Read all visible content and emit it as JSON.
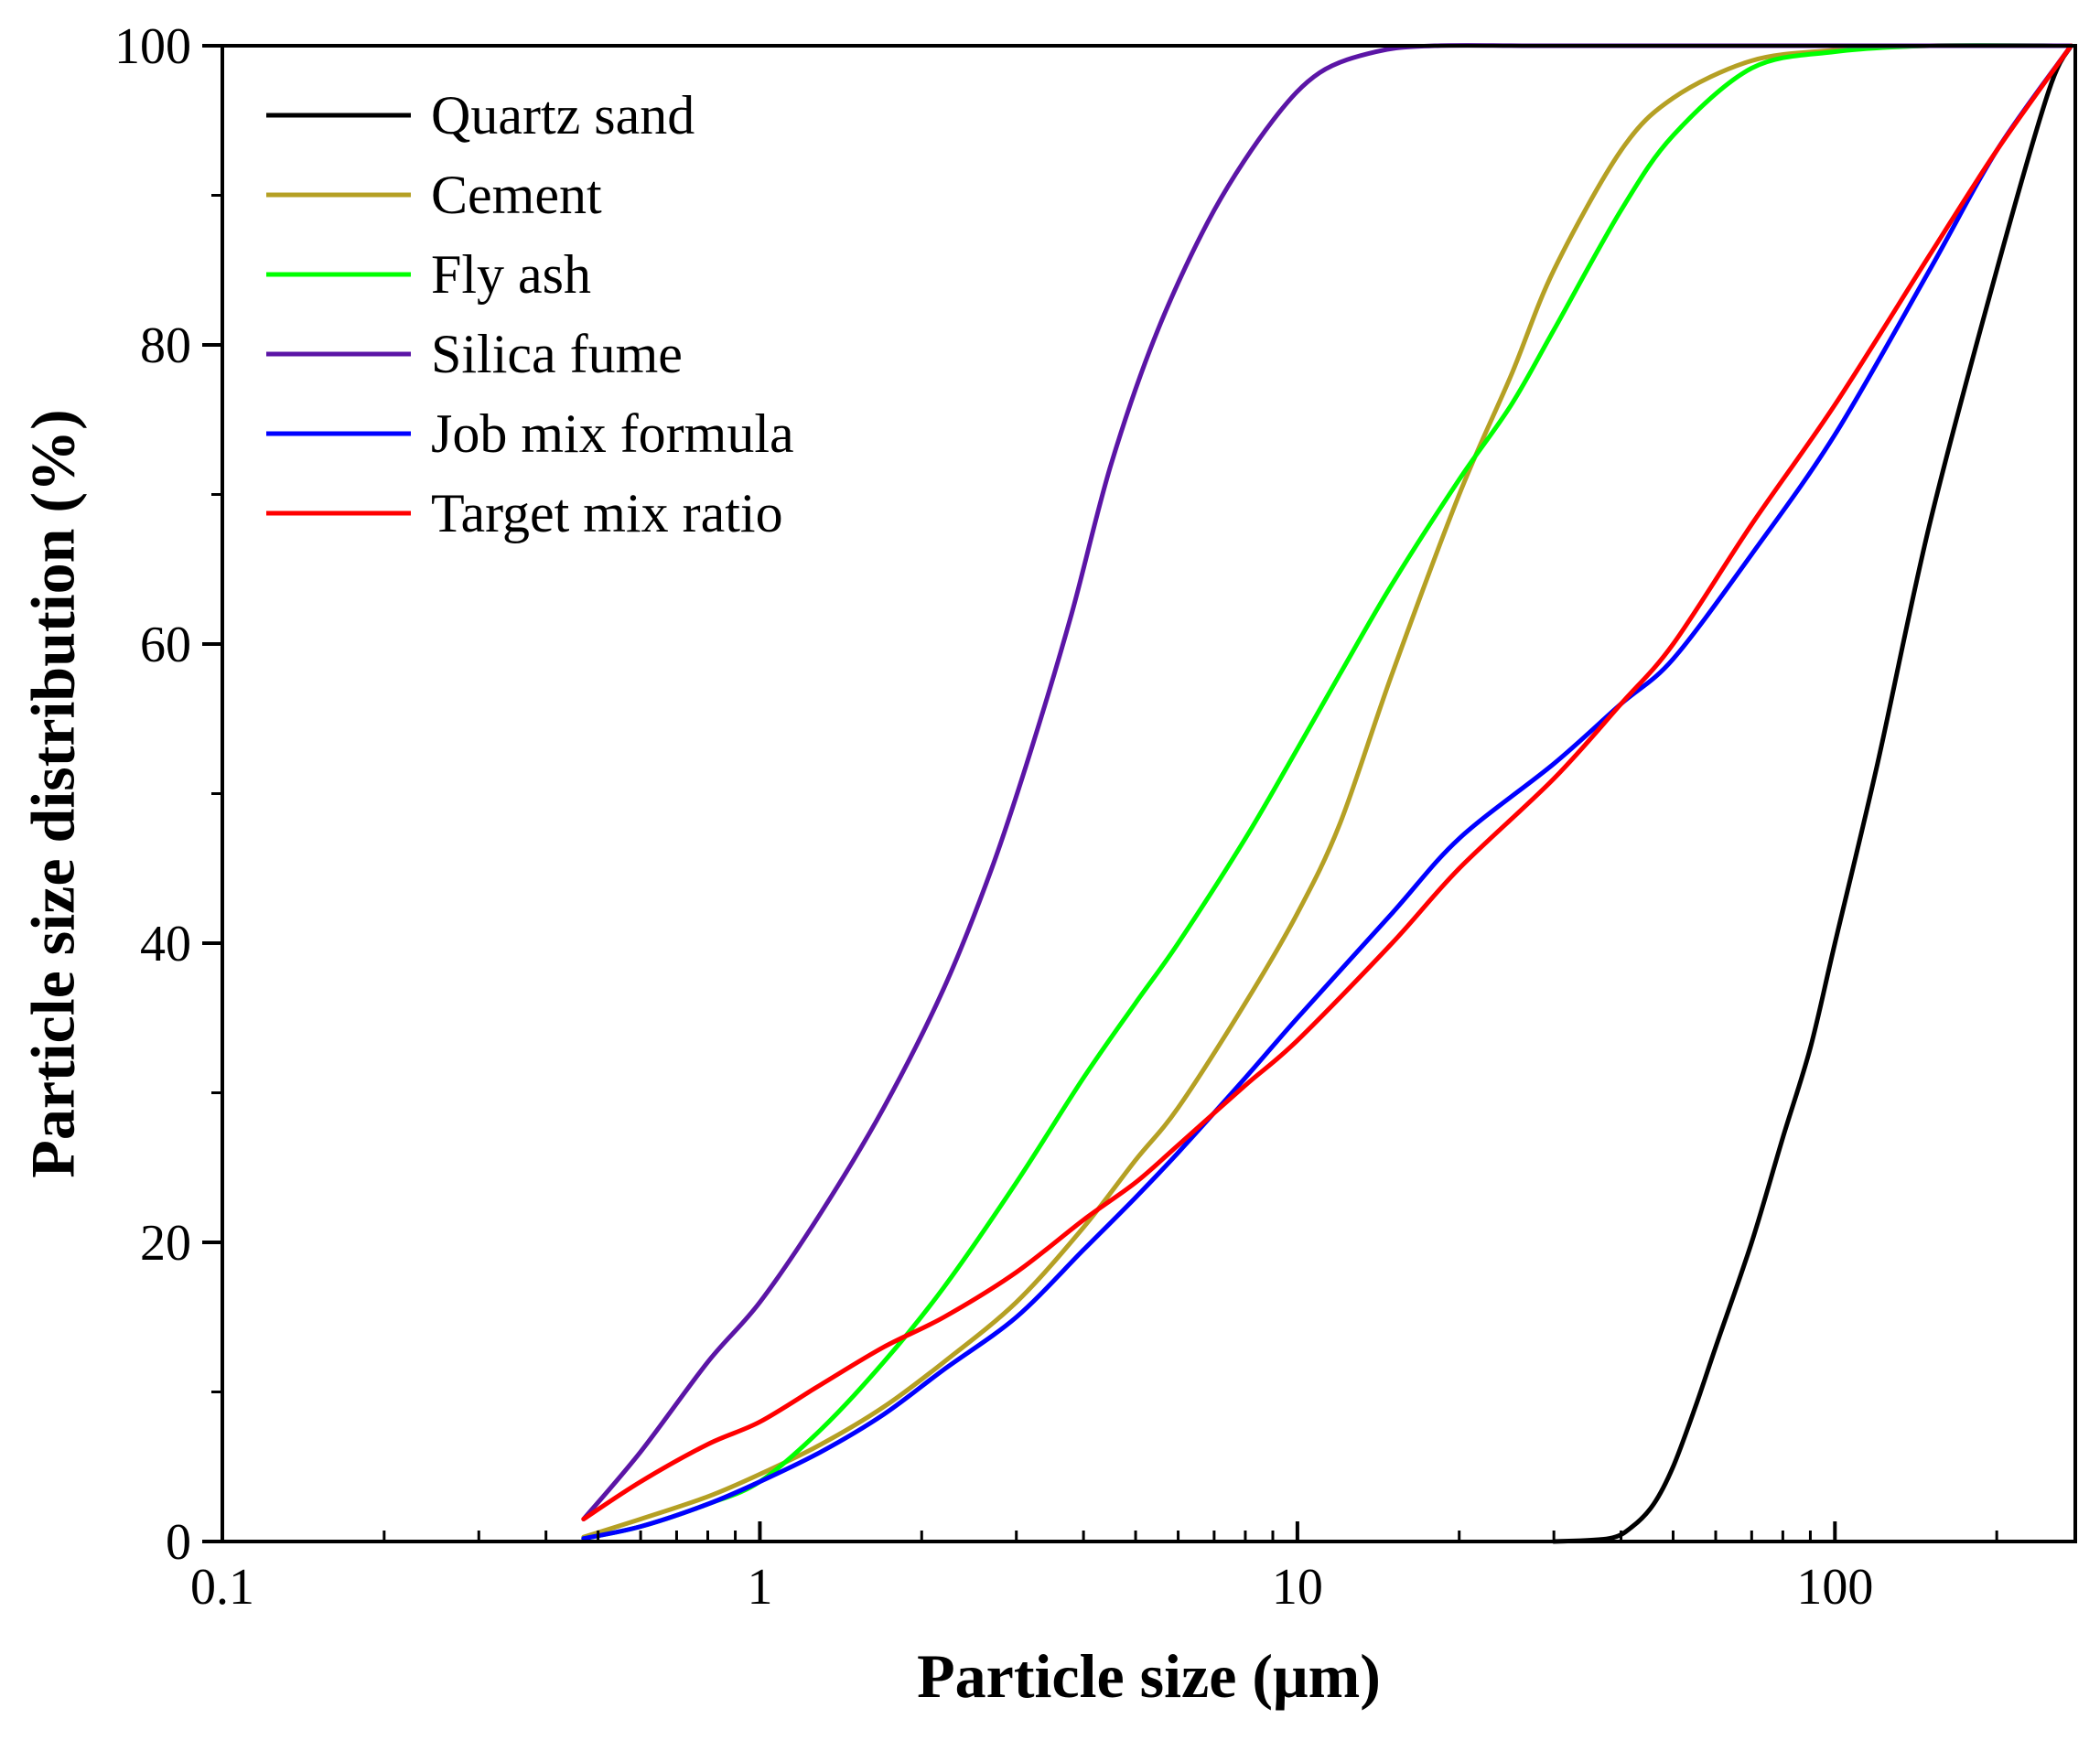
{
  "chart_data": {
    "type": "line",
    "title": "",
    "xlabel": "Particle size (μm)",
    "ylabel": "Particle size distribution (%)",
    "xscale": "log",
    "xlim": [
      0.1,
      280
    ],
    "ylim": [
      0,
      100
    ],
    "x_ticks": [
      {
        "value": 0.1,
        "label": "0.1"
      },
      {
        "value": 1,
        "label": "1"
      },
      {
        "value": 10,
        "label": "10"
      },
      {
        "value": 100,
        "label": "100"
      }
    ],
    "y_ticks": [
      {
        "value": 0,
        "label": "0"
      },
      {
        "value": 20,
        "label": "20"
      },
      {
        "value": 40,
        "label": "40"
      },
      {
        "value": 60,
        "label": "60"
      },
      {
        "value": 80,
        "label": "80"
      },
      {
        "value": 100,
        "label": "100"
      }
    ],
    "legend_position": "top-left",
    "grid": false,
    "series": [
      {
        "name": "Quartz sand",
        "color": "#000000",
        "points": [
          [
            30,
            0
          ],
          [
            38,
            0.2
          ],
          [
            42,
            1
          ],
          [
            46,
            2.5
          ],
          [
            50,
            5
          ],
          [
            55,
            9
          ],
          [
            60,
            13
          ],
          [
            70,
            20
          ],
          [
            80,
            27
          ],
          [
            90,
            33
          ],
          [
            100,
            40
          ],
          [
            120,
            52
          ],
          [
            150,
            68
          ],
          [
            200,
            85
          ],
          [
            250,
            97
          ],
          [
            275,
            100
          ]
        ]
      },
      {
        "name": "Cement",
        "color": "#b5a024",
        "points": [
          [
            0.47,
            0.3
          ],
          [
            0.6,
            1.5
          ],
          [
            0.8,
            3
          ],
          [
            1.0,
            4.5
          ],
          [
            1.3,
            6.5
          ],
          [
            1.7,
            9
          ],
          [
            2.2,
            12
          ],
          [
            3,
            16
          ],
          [
            4,
            21
          ],
          [
            5,
            25.5
          ],
          [
            6,
            29
          ],
          [
            8,
            36
          ],
          [
            10,
            42
          ],
          [
            12,
            48
          ],
          [
            15,
            58
          ],
          [
            20,
            70
          ],
          [
            25,
            78
          ],
          [
            30,
            85
          ],
          [
            40,
            93
          ],
          [
            50,
            96.5
          ],
          [
            70,
            99
          ],
          [
            100,
            99.7
          ],
          [
            150,
            100
          ],
          [
            275,
            100
          ]
        ]
      },
      {
        "name": "Fly ash",
        "color": "#00ff00",
        "points": [
          [
            0.47,
            0.2
          ],
          [
            0.6,
            1
          ],
          [
            0.8,
            2.5
          ],
          [
            1.0,
            4
          ],
          [
            1.3,
            7.5
          ],
          [
            1.7,
            12
          ],
          [
            2.2,
            17
          ],
          [
            3,
            24
          ],
          [
            4,
            31
          ],
          [
            5,
            36
          ],
          [
            6,
            40
          ],
          [
            8,
            47
          ],
          [
            10,
            53
          ],
          [
            12,
            58
          ],
          [
            15,
            64
          ],
          [
            20,
            71
          ],
          [
            25,
            76
          ],
          [
            30,
            81
          ],
          [
            40,
            89
          ],
          [
            50,
            94
          ],
          [
            70,
            98.5
          ],
          [
            100,
            99.6
          ],
          [
            150,
            100
          ],
          [
            275,
            100
          ]
        ]
      },
      {
        "name": "Silica fume",
        "color": "#5b15a6",
        "points": [
          [
            0.47,
            1.5
          ],
          [
            0.6,
            6
          ],
          [
            0.8,
            12
          ],
          [
            1.0,
            16
          ],
          [
            1.3,
            22
          ],
          [
            1.7,
            29
          ],
          [
            2.2,
            37
          ],
          [
            2.7,
            45
          ],
          [
            3.2,
            53
          ],
          [
            3.8,
            62
          ],
          [
            4.5,
            72
          ],
          [
            5.5,
            81
          ],
          [
            7,
            89
          ],
          [
            9,
            95
          ],
          [
            11,
            98.2
          ],
          [
            14,
            99.6
          ],
          [
            18,
            100
          ],
          [
            30,
            100
          ],
          [
            100,
            100
          ],
          [
            275,
            100
          ]
        ]
      },
      {
        "name": "Job mix formula",
        "color": "#0000ff",
        "points": [
          [
            0.47,
            0.2
          ],
          [
            0.6,
            1
          ],
          [
            0.8,
            2.5
          ],
          [
            1.0,
            4
          ],
          [
            1.3,
            6
          ],
          [
            1.7,
            8.5
          ],
          [
            2.2,
            11.5
          ],
          [
            3,
            15
          ],
          [
            4,
            19.5
          ],
          [
            5,
            23
          ],
          [
            6,
            26
          ],
          [
            8,
            31
          ],
          [
            10,
            35
          ],
          [
            15,
            42
          ],
          [
            20,
            47
          ],
          [
            30,
            52
          ],
          [
            40,
            56
          ],
          [
            50,
            59
          ],
          [
            70,
            66
          ],
          [
            100,
            74
          ],
          [
            150,
            85
          ],
          [
            200,
            93
          ],
          [
            275,
            100
          ]
        ]
      },
      {
        "name": "Target mix ratio",
        "color": "#ff0000",
        "points": [
          [
            0.47,
            1.5
          ],
          [
            0.6,
            4
          ],
          [
            0.8,
            6.5
          ],
          [
            1.0,
            8
          ],
          [
            1.3,
            10.5
          ],
          [
            1.7,
            13
          ],
          [
            2.2,
            15
          ],
          [
            3,
            18
          ],
          [
            4,
            21.5
          ],
          [
            5,
            24
          ],
          [
            6,
            26.5
          ],
          [
            8,
            30.5
          ],
          [
            10,
            33.5
          ],
          [
            15,
            40
          ],
          [
            20,
            45
          ],
          [
            30,
            51
          ],
          [
            40,
            56
          ],
          [
            50,
            60
          ],
          [
            70,
            68
          ],
          [
            100,
            76
          ],
          [
            150,
            86
          ],
          [
            200,
            93
          ],
          [
            275,
            100
          ]
        ]
      }
    ]
  }
}
